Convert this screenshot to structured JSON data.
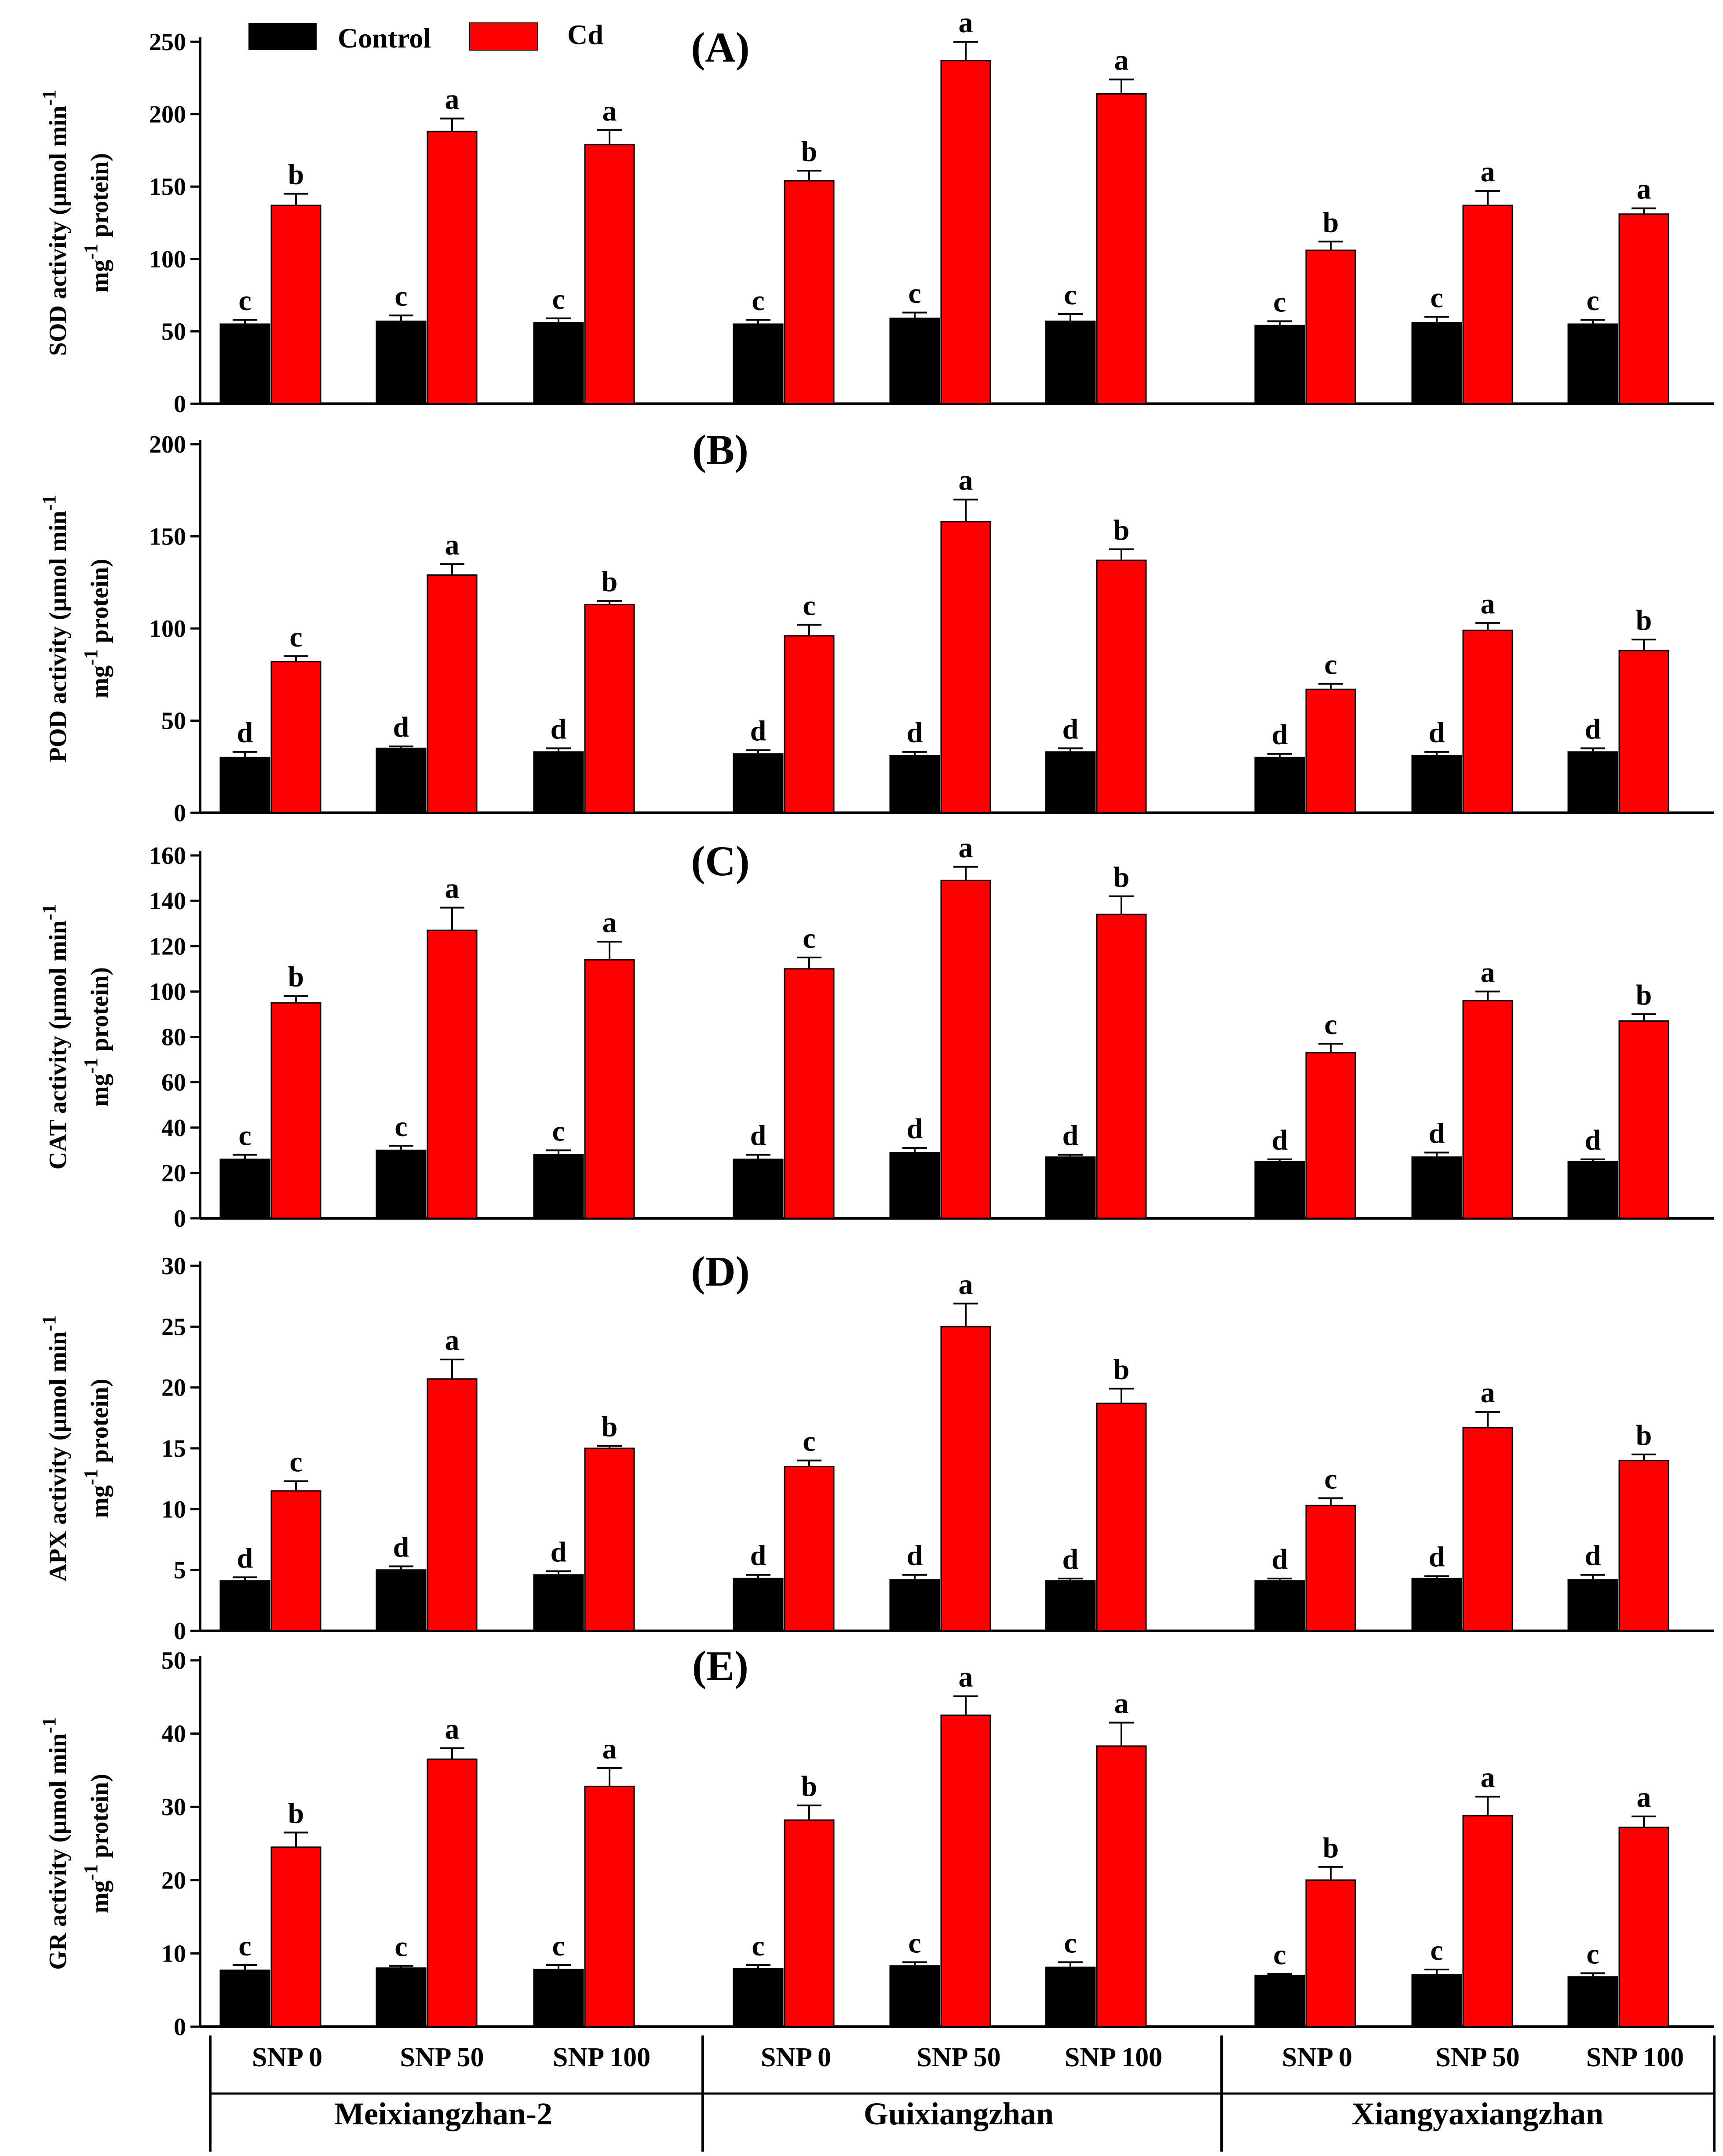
{
  "legend": [
    {
      "label": "Control",
      "color": "#000000"
    },
    {
      "label": "Cd",
      "color": "#ff0000"
    }
  ],
  "x_axis": {
    "treatments": [
      "SNP 0",
      "SNP 50",
      "SNP 100"
    ],
    "cultivars": [
      "Meixiangzhan-2",
      "Guixiangzhan",
      "Xiangyaxiangzhan"
    ]
  },
  "chart_data": [
    {
      "type": "bar",
      "title": "(A)",
      "ylabel_line1": "SOD activity (µmol min-1",
      "ylabel_line2": "mg-1 protein)",
      "ylim": [
        0,
        250
      ],
      "yticks": [
        0,
        50,
        100,
        150,
        200,
        250
      ],
      "categories": [
        "Meixiangzhan-2 SNP 0",
        "Meixiangzhan-2 SNP 50",
        "Meixiangzhan-2 SNP 100",
        "Guixiangzhan SNP 0",
        "Guixiangzhan SNP 50",
        "Guixiangzhan SNP 100",
        "Xiangyaxiangzhan SNP 0",
        "Xiangyaxiangzhan SNP 50",
        "Xiangyaxiangzhan SNP 100"
      ],
      "series": [
        {
          "name": "Control",
          "values": [
            55,
            57,
            56,
            55,
            59,
            57,
            54,
            56,
            55
          ],
          "errors": [
            3,
            4,
            3,
            3,
            4,
            5,
            3,
            4,
            3
          ],
          "letters": [
            "c",
            "c",
            "c",
            "c",
            "c",
            "c",
            "c",
            "c",
            "c"
          ]
        },
        {
          "name": "Cd",
          "values": [
            137,
            188,
            179,
            154,
            237,
            214,
            106,
            137,
            131
          ],
          "errors": [
            8,
            9,
            10,
            7,
            13,
            10,
            6,
            10,
            4
          ],
          "letters": [
            "b",
            "a",
            "a",
            "b",
            "a",
            "a",
            "b",
            "a",
            "a"
          ]
        }
      ]
    },
    {
      "type": "bar",
      "title": "(B)",
      "ylabel_line1": "POD activity (µmol min-1",
      "ylabel_line2": "mg-1 protein)",
      "ylim": [
        0,
        200
      ],
      "yticks": [
        0,
        50,
        100,
        150,
        200
      ],
      "categories": [
        "Meixiangzhan-2 SNP 0",
        "Meixiangzhan-2 SNP 50",
        "Meixiangzhan-2 SNP 100",
        "Guixiangzhan SNP 0",
        "Guixiangzhan SNP 50",
        "Guixiangzhan SNP 100",
        "Xiangyaxiangzhan SNP 0",
        "Xiangyaxiangzhan SNP 50",
        "Xiangyaxiangzhan SNP 100"
      ],
      "series": [
        {
          "name": "Control",
          "values": [
            30,
            35,
            33,
            32,
            31,
            33,
            30,
            31,
            33
          ],
          "errors": [
            3,
            1,
            2,
            2,
            2,
            2,
            2,
            2,
            2
          ],
          "letters": [
            "d",
            "d",
            "d",
            "d",
            "d",
            "d",
            "d",
            "d",
            "d"
          ]
        },
        {
          "name": "Cd",
          "values": [
            82,
            129,
            113,
            96,
            158,
            137,
            67,
            99,
            88
          ],
          "errors": [
            3,
            6,
            2,
            6,
            12,
            6,
            3,
            4,
            6
          ],
          "letters": [
            "c",
            "a",
            "b",
            "c",
            "a",
            "b",
            "c",
            "a",
            "b"
          ]
        }
      ]
    },
    {
      "type": "bar",
      "title": "(C)",
      "ylabel_line1": "CAT activity (µmol min-1",
      "ylabel_line2": "mg-1 protein)",
      "ylim": [
        0,
        160
      ],
      "yticks": [
        0,
        20,
        40,
        60,
        80,
        100,
        120,
        140,
        160
      ],
      "categories": [
        "Meixiangzhan-2 SNP 0",
        "Meixiangzhan-2 SNP 50",
        "Meixiangzhan-2 SNP 100",
        "Guixiangzhan SNP 0",
        "Guixiangzhan SNP 50",
        "Guixiangzhan SNP 100",
        "Xiangyaxiangzhan SNP 0",
        "Xiangyaxiangzhan SNP 50",
        "Xiangyaxiangzhan SNP 100"
      ],
      "series": [
        {
          "name": "Control",
          "values": [
            26,
            30,
            28,
            26,
            29,
            27,
            25,
            27,
            25
          ],
          "errors": [
            2,
            2,
            2,
            2,
            2,
            1,
            1,
            2,
            1
          ],
          "letters": [
            "c",
            "c",
            "c",
            "d",
            "d",
            "d",
            "d",
            "d",
            "d"
          ]
        },
        {
          "name": "Cd",
          "values": [
            95,
            127,
            114,
            110,
            149,
            134,
            73,
            96,
            87
          ],
          "errors": [
            3,
            10,
            8,
            5,
            6,
            8,
            4,
            4,
            3
          ],
          "letters": [
            "b",
            "a",
            "a",
            "c",
            "a",
            "b",
            "c",
            "a",
            "b"
          ]
        }
      ]
    },
    {
      "type": "bar",
      "title": "(D)",
      "ylabel_line1": "APX activity (µmol min-1",
      "ylabel_line2": "mg-1 protein)",
      "ylim": [
        0,
        30
      ],
      "yticks": [
        0,
        5,
        10,
        15,
        20,
        25,
        30
      ],
      "categories": [
        "Meixiangzhan-2 SNP 0",
        "Meixiangzhan-2 SNP 50",
        "Meixiangzhan-2 SNP 100",
        "Guixiangzhan SNP 0",
        "Guixiangzhan SNP 50",
        "Guixiangzhan SNP 100",
        "Xiangyaxiangzhan SNP 0",
        "Xiangyaxiangzhan SNP 50",
        "Xiangyaxiangzhan SNP 100"
      ],
      "series": [
        {
          "name": "Control",
          "values": [
            4.1,
            5.0,
            4.6,
            4.3,
            4.2,
            4.1,
            4.1,
            4.3,
            4.2
          ],
          "errors": [
            0.3,
            0.3,
            0.3,
            0.3,
            0.4,
            0.2,
            0.2,
            0.2,
            0.4
          ],
          "letters": [
            "d",
            "d",
            "d",
            "d",
            "d",
            "d",
            "d",
            "d",
            "d"
          ]
        },
        {
          "name": "Cd",
          "values": [
            11.5,
            20.7,
            15.0,
            13.5,
            25.0,
            18.7,
            10.3,
            16.7,
            14.0
          ],
          "errors": [
            0.8,
            1.6,
            0.2,
            0.5,
            1.9,
            1.2,
            0.6,
            1.3,
            0.5
          ],
          "letters": [
            "c",
            "a",
            "b",
            "c",
            "a",
            "b",
            "c",
            "a",
            "b"
          ]
        }
      ]
    },
    {
      "type": "bar",
      "title": "(E)",
      "ylabel_line1": "GR activity (µmol min-1",
      "ylabel_line2": "mg-1 protein)",
      "ylim": [
        0,
        50
      ],
      "yticks": [
        0,
        10,
        20,
        30,
        40,
        50
      ],
      "categories": [
        "Meixiangzhan-2 SNP 0",
        "Meixiangzhan-2 SNP 50",
        "Meixiangzhan-2 SNP 100",
        "Guixiangzhan SNP 0",
        "Guixiangzhan SNP 50",
        "Guixiangzhan SNP 100",
        "Xiangyaxiangzhan SNP 0",
        "Xiangyaxiangzhan SNP 50",
        "Xiangyaxiangzhan SNP 100"
      ],
      "series": [
        {
          "name": "Control",
          "values": [
            7.7,
            8.0,
            7.8,
            7.9,
            8.3,
            8.1,
            7.0,
            7.1,
            6.8
          ],
          "errors": [
            0.7,
            0.3,
            0.6,
            0.5,
            0.5,
            0.7,
            0.2,
            0.7,
            0.5
          ],
          "letters": [
            "c",
            "c",
            "c",
            "c",
            "c",
            "c",
            "c",
            "c",
            "c"
          ]
        },
        {
          "name": "Cd",
          "values": [
            24.5,
            36.5,
            32.8,
            28.2,
            42.5,
            38.3,
            20.0,
            28.8,
            27.2
          ],
          "errors": [
            2.0,
            1.5,
            2.5,
            2.0,
            2.6,
            3.2,
            1.8,
            2.6,
            1.5
          ],
          "letters": [
            "b",
            "a",
            "a",
            "b",
            "a",
            "a",
            "b",
            "a",
            "a"
          ]
        }
      ]
    }
  ]
}
